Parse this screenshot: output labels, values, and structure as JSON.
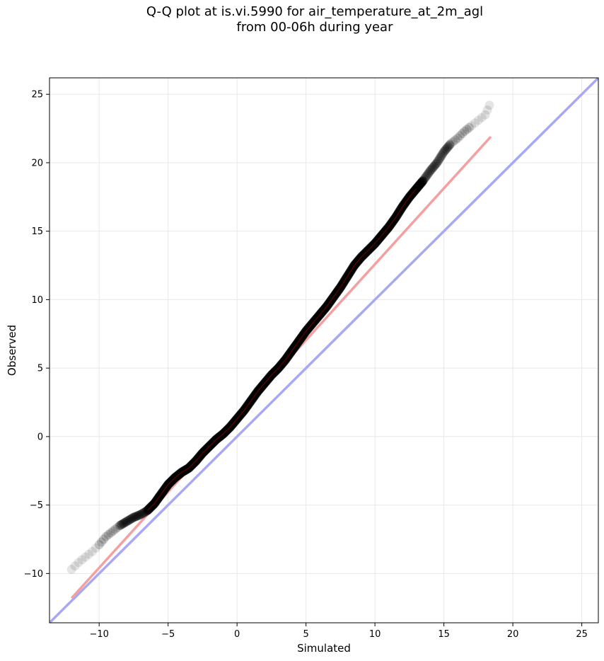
{
  "chart_data": {
    "type": "scatter",
    "title_line1": "Q-Q plot at is.vi.5990 for air_temperature_at_2m_agl",
    "title_line2": "from 00-06h during year",
    "xlabel": "Simulated",
    "ylabel": "Observed",
    "xlim": [
      -13.6,
      26.2
    ],
    "ylim": [
      -13.6,
      26.2
    ],
    "xticks": [
      -10,
      -5,
      0,
      5,
      10,
      15,
      20,
      25
    ],
    "yticks": [
      -10,
      -5,
      0,
      5,
      10,
      15,
      20,
      25
    ],
    "grid": true,
    "legend": "none",
    "colors": {
      "points": "#000000",
      "fit_line": "#f4a0a0",
      "identity_line": "#a8a8f4",
      "grid": "#e8e8e8"
    },
    "quantile_curve": {
      "x": [
        -12.0,
        -11.5,
        -11.0,
        -10.5,
        -10.0,
        -9.5,
        -9.0,
        -8.5,
        -8.0,
        -7.5,
        -7.0,
        -6.5,
        -6.0,
        -5.5,
        -5.0,
        -4.5,
        -4.0,
        -3.5,
        -3.0,
        -2.5,
        -2.0,
        -1.5,
        -1.0,
        -0.5,
        0.0,
        0.5,
        1.0,
        1.5,
        2.0,
        2.5,
        3.0,
        3.5,
        4.0,
        4.5,
        5.0,
        5.5,
        6.0,
        6.5,
        7.0,
        7.5,
        8.0,
        8.5,
        9.0,
        9.5,
        10.0,
        10.5,
        11.0,
        11.5,
        12.0,
        12.5,
        13.0,
        13.5,
        14.0,
        14.5,
        15.0,
        15.5,
        16.0,
        16.5,
        17.0,
        17.5,
        18.0,
        18.3
      ],
      "y": [
        -9.7,
        -9.2,
        -8.8,
        -8.4,
        -7.9,
        -7.3,
        -6.9,
        -6.5,
        -6.2,
        -5.9,
        -5.7,
        -5.4,
        -4.9,
        -4.2,
        -3.5,
        -3.0,
        -2.6,
        -2.3,
        -1.8,
        -1.2,
        -0.7,
        -0.2,
        0.2,
        0.7,
        1.3,
        1.9,
        2.6,
        3.3,
        3.9,
        4.5,
        5.0,
        5.6,
        6.3,
        7.0,
        7.7,
        8.3,
        8.9,
        9.5,
        10.2,
        10.9,
        11.7,
        12.5,
        13.1,
        13.6,
        14.1,
        14.7,
        15.3,
        16.0,
        16.8,
        17.5,
        18.1,
        18.7,
        19.4,
        20.0,
        20.8,
        21.4,
        21.8,
        22.3,
        22.7,
        23.1,
        23.5,
        24.2
      ]
    },
    "fit_line": {
      "x": [
        -12.0,
        18.4
      ],
      "y": [
        -11.8,
        21.9
      ]
    },
    "identity_line": {
      "x": [
        -13.6,
        26.2
      ],
      "y": [
        -13.6,
        26.2
      ]
    }
  }
}
